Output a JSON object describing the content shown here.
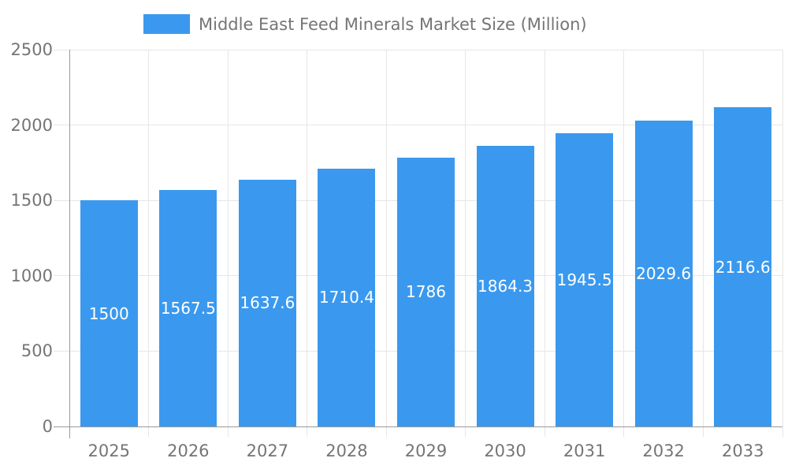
{
  "legend": {
    "label": "Middle East Feed Minerals Market Size (Million)"
  },
  "chart_data": {
    "type": "bar",
    "title": "Middle East Feed Minerals Market Size (Million)",
    "categories": [
      "2025",
      "2026",
      "2027",
      "2028",
      "2029",
      "2030",
      "2031",
      "2032",
      "2033"
    ],
    "series": [
      {
        "name": "Middle East Feed Minerals Market Size (Million)",
        "values": [
          1500,
          1567.5,
          1637.6,
          1710.4,
          1786,
          1864.3,
          1945.5,
          2029.6,
          2116.6
        ]
      }
    ],
    "value_labels": [
      "1500",
      "1567.5",
      "1637.6",
      "1710.4",
      "1786",
      "1864.3",
      "1945.5",
      "2029.6",
      "2116.6"
    ],
    "xlabel": "",
    "ylabel": "",
    "ylim": [
      0,
      2500
    ],
    "yticks": [
      0,
      500,
      1000,
      1500,
      2000,
      2500
    ],
    "grid": true,
    "legend_position": "top",
    "colors": {
      "bar": "#3A99EE",
      "axis_line": "#999999",
      "gridline": "#E6E6E6",
      "tick_text": "#757575",
      "value_label_text": "#FFFFFF",
      "background": "#FFFFFF"
    }
  }
}
